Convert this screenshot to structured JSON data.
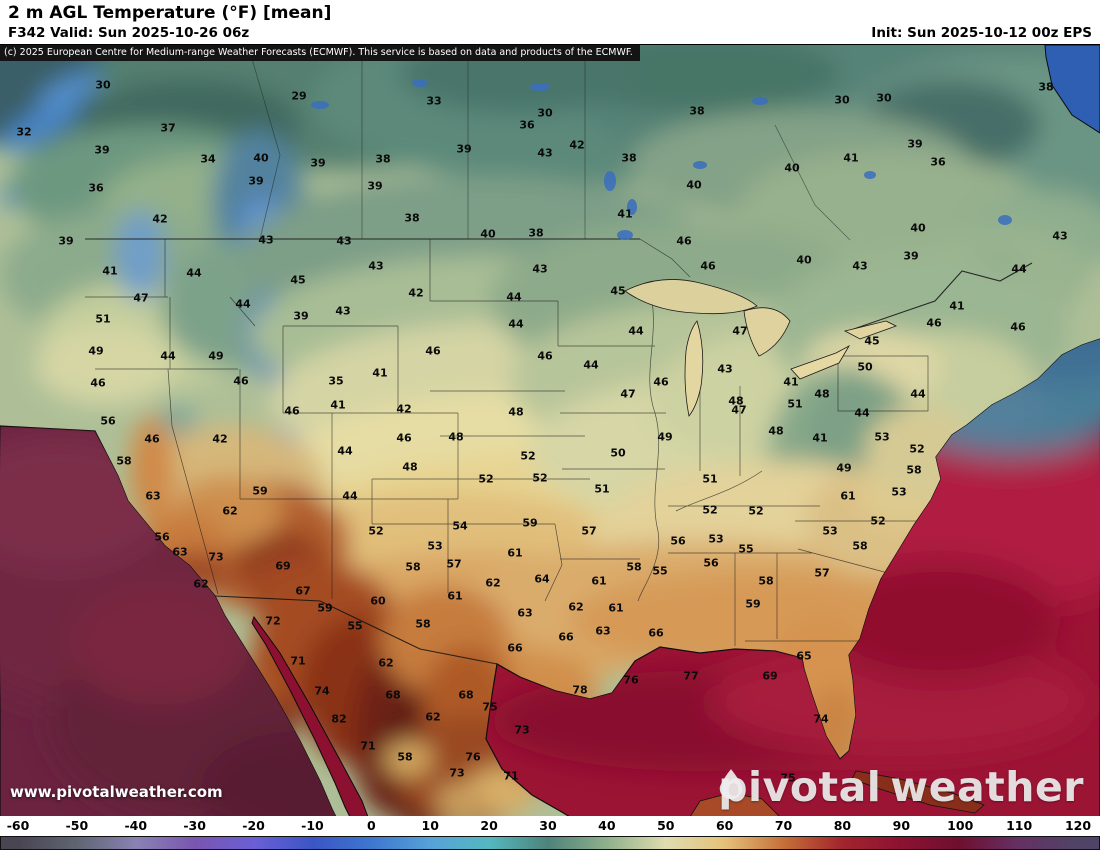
{
  "header": {
    "title": "2 m AGL Temperature (°F) [mean]",
    "valid": "F342 Valid: Sun 2025-10-26 06z",
    "init": "Init: Sun 2025-10-12 00z EPS"
  },
  "copyright": "(c) 2025 European Centre for Medium-range Weather Forecasts (ECMWF). This service is based on data and products of the ECMWF.",
  "watermark": {
    "url": "www.pivotalweather.com",
    "brand_left": "pivotal",
    "brand_right": "weather"
  },
  "colorbar": {
    "stops": [
      {
        "v": -60,
        "c": "#4a4553"
      },
      {
        "v": -50,
        "c": "#5f6673"
      },
      {
        "v": -40,
        "c": "#8a82b4"
      },
      {
        "v": -30,
        "c": "#7a55b0"
      },
      {
        "v": -20,
        "c": "#6a5fd6"
      },
      {
        "v": -10,
        "c": "#3c55c4"
      },
      {
        "v": 0,
        "c": "#3d77cf"
      },
      {
        "v": 10,
        "c": "#56a2d8"
      },
      {
        "v": 20,
        "c": "#54b8c0"
      },
      {
        "v": 30,
        "c": "#4d837a"
      },
      {
        "v": 40,
        "c": "#8fb08c"
      },
      {
        "v": 50,
        "c": "#dfdcae"
      },
      {
        "v": 60,
        "c": "#e5c27a"
      },
      {
        "v": 70,
        "c": "#c57038"
      },
      {
        "v": 80,
        "c": "#a3242e"
      },
      {
        "v": 90,
        "c": "#8c1232"
      },
      {
        "v": 100,
        "c": "#6e0f30"
      },
      {
        "v": 110,
        "c": "#653064"
      },
      {
        "v": 120,
        "c": "#4f4468"
      }
    ]
  },
  "map_labels": [
    [
      30,
      103,
      84
    ],
    [
      29,
      299,
      95
    ],
    [
      33,
      434,
      100
    ],
    [
      30,
      545,
      112
    ],
    [
      38,
      697,
      110
    ],
    [
      30,
      842,
      99
    ],
    [
      30,
      884,
      97
    ],
    [
      38,
      1046,
      86
    ],
    [
      32,
      24,
      131
    ],
    [
      37,
      168,
      127
    ],
    [
      36,
      527,
      124
    ],
    [
      42,
      577,
      144
    ],
    [
      38,
      629,
      157
    ],
    [
      39,
      102,
      149
    ],
    [
      34,
      208,
      158
    ],
    [
      40,
      261,
      157
    ],
    [
      39,
      318,
      162
    ],
    [
      38,
      383,
      158
    ],
    [
      39,
      464,
      148
    ],
    [
      43,
      545,
      152
    ],
    [
      40,
      792,
      167
    ],
    [
      41,
      851,
      157
    ],
    [
      39,
      915,
      143
    ],
    [
      36,
      938,
      161
    ],
    [
      36,
      96,
      187
    ],
    [
      39,
      256,
      180
    ],
    [
      39,
      375,
      185
    ],
    [
      40,
      694,
      184
    ],
    [
      42,
      160,
      218
    ],
    [
      38,
      412,
      217
    ],
    [
      41,
      625,
      213
    ],
    [
      40,
      918,
      227
    ],
    [
      39,
      66,
      240
    ],
    [
      43,
      266,
      239
    ],
    [
      43,
      344,
      240
    ],
    [
      40,
      488,
      233
    ],
    [
      38,
      536,
      232
    ],
    [
      46,
      684,
      240
    ],
    [
      39,
      911,
      255
    ],
    [
      43,
      1060,
      235
    ],
    [
      41,
      110,
      270
    ],
    [
      44,
      194,
      272
    ],
    [
      45,
      298,
      279
    ],
    [
      43,
      376,
      265
    ],
    [
      43,
      540,
      268
    ],
    [
      46,
      708,
      265
    ],
    [
      40,
      804,
      259
    ],
    [
      43,
      860,
      265
    ],
    [
      44,
      1019,
      268
    ],
    [
      47,
      141,
      297
    ],
    [
      44,
      243,
      303
    ],
    [
      42,
      416,
      292
    ],
    [
      44,
      514,
      296
    ],
    [
      45,
      618,
      290
    ],
    [
      41,
      957,
      305
    ],
    [
      46,
      934,
      322
    ],
    [
      46,
      1018,
      326
    ],
    [
      51,
      103,
      318
    ],
    [
      39,
      301,
      315
    ],
    [
      43,
      343,
      310
    ],
    [
      44,
      516,
      323
    ],
    [
      44,
      636,
      330
    ],
    [
      47,
      740,
      330
    ],
    [
      45,
      872,
      340
    ],
    [
      50,
      865,
      366
    ],
    [
      49,
      96,
      350
    ],
    [
      44,
      168,
      355
    ],
    [
      49,
      216,
      355
    ],
    [
      46,
      433,
      350
    ],
    [
      46,
      545,
      355
    ],
    [
      44,
      591,
      364
    ],
    [
      43,
      725,
      368
    ],
    [
      41,
      791,
      381
    ],
    [
      48,
      822,
      393
    ],
    [
      44,
      918,
      393
    ],
    [
      46,
      98,
      382
    ],
    [
      35,
      336,
      380
    ],
    [
      41,
      380,
      372
    ],
    [
      47,
      628,
      393
    ],
    [
      46,
      661,
      381
    ],
    [
      48,
      736,
      400
    ],
    [
      51,
      795,
      403
    ],
    [
      46,
      241,
      380
    ],
    [
      46,
      292,
      410
    ],
    [
      41,
      338,
      404
    ],
    [
      42,
      404,
      408
    ],
    [
      48,
      516,
      411
    ],
    [
      47,
      739,
      409
    ],
    [
      44,
      862,
      412
    ],
    [
      56,
      108,
      420
    ],
    [
      46,
      152,
      438
    ],
    [
      42,
      220,
      438
    ],
    [
      44,
      345,
      450
    ],
    [
      46,
      404,
      437
    ],
    [
      48,
      456,
      436
    ],
    [
      49,
      665,
      436
    ],
    [
      48,
      776,
      430
    ],
    [
      41,
      820,
      437
    ],
    [
      53,
      882,
      436
    ],
    [
      52,
      917,
      448
    ],
    [
      58,
      124,
      460
    ],
    [
      48,
      410,
      466
    ],
    [
      52,
      528,
      455
    ],
    [
      50,
      618,
      452
    ],
    [
      52,
      486,
      478
    ],
    [
      51,
      602,
      488
    ],
    [
      51,
      710,
      478
    ],
    [
      49,
      844,
      467
    ],
    [
      58,
      914,
      469
    ],
    [
      63,
      153,
      495
    ],
    [
      59,
      260,
      490
    ],
    [
      44,
      350,
      495
    ],
    [
      52,
      540,
      477
    ],
    [
      61,
      848,
      495
    ],
    [
      53,
      899,
      491
    ],
    [
      62,
      230,
      510
    ],
    [
      52,
      376,
      530
    ],
    [
      54,
      460,
      525
    ],
    [
      59,
      530,
      522
    ],
    [
      57,
      589,
      530
    ],
    [
      52,
      710,
      509
    ],
    [
      52,
      756,
      510
    ],
    [
      56,
      678,
      540
    ],
    [
      53,
      716,
      538
    ],
    [
      55,
      746,
      548
    ],
    [
      53,
      830,
      530
    ],
    [
      52,
      878,
      520
    ],
    [
      56,
      162,
      536
    ],
    [
      63,
      180,
      551
    ],
    [
      53,
      435,
      545
    ],
    [
      57,
      454,
      563
    ],
    [
      61,
      515,
      552
    ],
    [
      56,
      711,
      562
    ],
    [
      58,
      860,
      545
    ],
    [
      57,
      822,
      572
    ],
    [
      73,
      216,
      556
    ],
    [
      69,
      283,
      565
    ],
    [
      58,
      413,
      566
    ],
    [
      64,
      542,
      578
    ],
    [
      58,
      634,
      566
    ],
    [
      55,
      660,
      570
    ],
    [
      58,
      766,
      580
    ],
    [
      62,
      201,
      583
    ],
    [
      67,
      303,
      590
    ],
    [
      59,
      325,
      607
    ],
    [
      60,
      378,
      600
    ],
    [
      61,
      455,
      595
    ],
    [
      62,
      493,
      582
    ],
    [
      61,
      599,
      580
    ],
    [
      59,
      753,
      603
    ],
    [
      63,
      525,
      612
    ],
    [
      62,
      576,
      606
    ],
    [
      61,
      616,
      607
    ],
    [
      72,
      273,
      620
    ],
    [
      55,
      355,
      625
    ],
    [
      58,
      423,
      623
    ],
    [
      66,
      566,
      636
    ],
    [
      63,
      603,
      630
    ],
    [
      66,
      656,
      632
    ],
    [
      71,
      298,
      660
    ],
    [
      62,
      386,
      662
    ],
    [
      66,
      515,
      647
    ],
    [
      65,
      804,
      655
    ],
    [
      69,
      770,
      675
    ],
    [
      74,
      322,
      690
    ],
    [
      68,
      393,
      694
    ],
    [
      68,
      466,
      694
    ],
    [
      75,
      490,
      706
    ],
    [
      78,
      580,
      689
    ],
    [
      76,
      631,
      679
    ],
    [
      77,
      691,
      675
    ],
    [
      82,
      339,
      718
    ],
    [
      62,
      433,
      716
    ],
    [
      73,
      522,
      729
    ],
    [
      74,
      821,
      718
    ],
    [
      71,
      368,
      745
    ],
    [
      58,
      405,
      756
    ],
    [
      76,
      473,
      756
    ],
    [
      73,
      457,
      772
    ],
    [
      71,
      511,
      775
    ],
    [
      75,
      788,
      777
    ]
  ]
}
